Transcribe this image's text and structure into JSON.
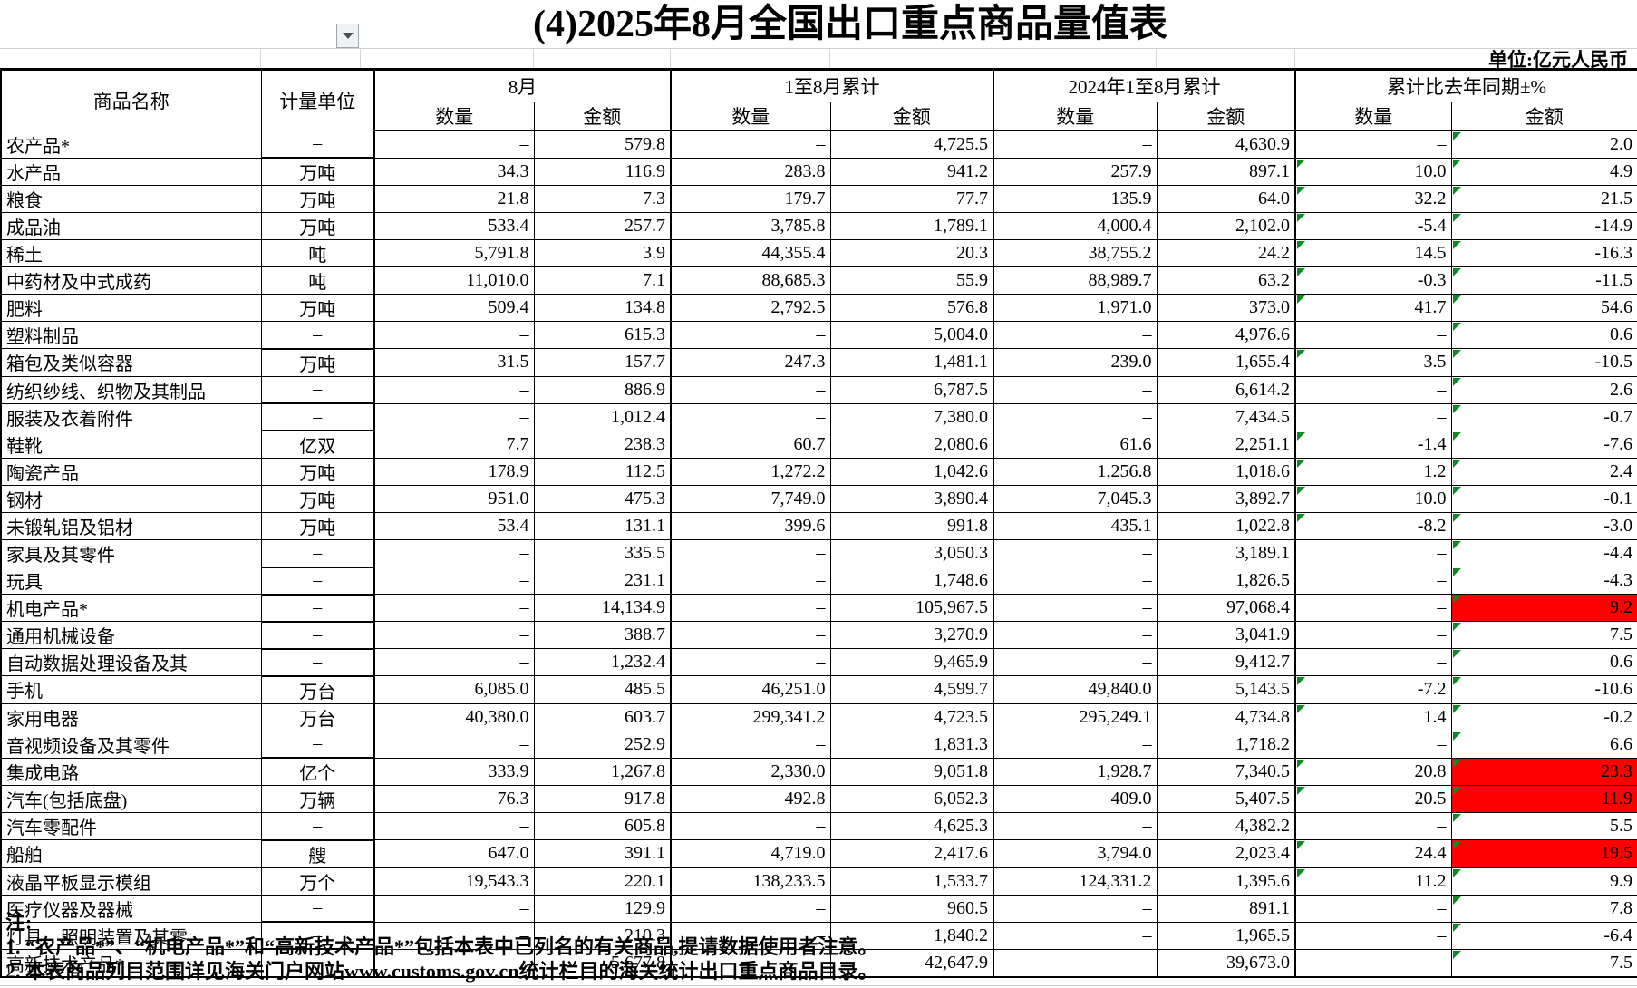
{
  "title": "(4)2025年8月全国出口重点商品量值表",
  "unit_note": "单位:亿元人民币",
  "dropdown": {
    "symbol": "▼"
  },
  "colors": {
    "highlight_red": "#fe0000",
    "error_triangle_green": "#0d8a26",
    "table_border": "#000000",
    "sheet_gridline": "#d0d0d0"
  },
  "table": {
    "dash": "–",
    "headers": {
      "name": "商品名称",
      "unit": "计量单位",
      "groups": [
        {
          "label": "8月"
        },
        {
          "label": "1至8月累计"
        },
        {
          "label": "2024年1至8月累计"
        },
        {
          "label": "累计比去年同期±%"
        }
      ],
      "qty": "数量",
      "val": "金额"
    },
    "rows": [
      {
        "name": "农产品*",
        "indent": false,
        "unit": "–",
        "q8": "–",
        "v8": "579.8",
        "q18": "–",
        "v18": "4,725.5",
        "q24": "–",
        "v24": "4,630.9",
        "pq": "–",
        "pv": "2.0",
        "red": false
      },
      {
        "name": "水产品",
        "indent": true,
        "unit": "万吨",
        "q8": "34.3",
        "v8": "116.9",
        "q18": "283.8",
        "v18": "941.2",
        "q24": "257.9",
        "v24": "897.1",
        "pq": "10.0",
        "pv": "4.9",
        "red": false
      },
      {
        "name": "粮食",
        "indent": true,
        "unit": "万吨",
        "q8": "21.8",
        "v8": "7.3",
        "q18": "179.7",
        "v18": "77.7",
        "q24": "135.9",
        "v24": "64.0",
        "pq": "32.2",
        "pv": "21.5",
        "red": false
      },
      {
        "name": "成品油",
        "indent": false,
        "unit": "万吨",
        "q8": "533.4",
        "v8": "257.7",
        "q18": "3,785.8",
        "v18": "1,789.1",
        "q24": "4,000.4",
        "v24": "2,102.0",
        "pq": "-5.4",
        "pv": "-14.9",
        "red": false
      },
      {
        "name": "稀土",
        "indent": false,
        "unit": "吨",
        "q8": "5,791.8",
        "v8": "3.9",
        "q18": "44,355.4",
        "v18": "20.3",
        "q24": "38,755.2",
        "v24": "24.2",
        "pq": "14.5",
        "pv": "-16.3",
        "red": false
      },
      {
        "name": "中药材及中式成药",
        "indent": false,
        "unit": "吨",
        "q8": "11,010.0",
        "v8": "7.1",
        "q18": "88,685.3",
        "v18": "55.9",
        "q24": "88,989.7",
        "v24": "63.2",
        "pq": "-0.3",
        "pv": "-11.5",
        "red": false
      },
      {
        "name": "肥料",
        "indent": false,
        "unit": "万吨",
        "q8": "509.4",
        "v8": "134.8",
        "q18": "2,792.5",
        "v18": "576.8",
        "q24": "1,971.0",
        "v24": "373.0",
        "pq": "41.7",
        "pv": "54.6",
        "red": false
      },
      {
        "name": "塑料制品",
        "indent": false,
        "unit": "–",
        "q8": "–",
        "v8": "615.3",
        "q18": "–",
        "v18": "5,004.0",
        "q24": "–",
        "v24": "4,976.6",
        "pq": "–",
        "pv": "0.6",
        "red": false
      },
      {
        "name": "箱包及类似容器",
        "indent": false,
        "unit": "万吨",
        "q8": "31.5",
        "v8": "157.7",
        "q18": "247.3",
        "v18": "1,481.1",
        "q24": "239.0",
        "v24": "1,655.4",
        "pq": "3.5",
        "pv": "-10.5",
        "red": false
      },
      {
        "name": "纺织纱线、织物及其制品",
        "indent": false,
        "unit": "–",
        "q8": "–",
        "v8": "886.9",
        "q18": "–",
        "v18": "6,787.5",
        "q24": "–",
        "v24": "6,614.2",
        "pq": "–",
        "pv": "2.6",
        "red": false
      },
      {
        "name": "服装及衣着附件",
        "indent": false,
        "unit": "–",
        "q8": "–",
        "v8": "1,012.4",
        "q18": "–",
        "v18": "7,380.0",
        "q24": "–",
        "v24": "7,434.5",
        "pq": "–",
        "pv": "-0.7",
        "red": false
      },
      {
        "name": "鞋靴",
        "indent": false,
        "unit": "亿双",
        "q8": "7.7",
        "v8": "238.3",
        "q18": "60.7",
        "v18": "2,080.6",
        "q24": "61.6",
        "v24": "2,251.1",
        "pq": "-1.4",
        "pv": "-7.6",
        "red": false
      },
      {
        "name": "陶瓷产品",
        "indent": false,
        "unit": "万吨",
        "q8": "178.9",
        "v8": "112.5",
        "q18": "1,272.2",
        "v18": "1,042.6",
        "q24": "1,256.8",
        "v24": "1,018.6",
        "pq": "1.2",
        "pv": "2.4",
        "red": false
      },
      {
        "name": "钢材",
        "indent": false,
        "unit": "万吨",
        "q8": "951.0",
        "v8": "475.3",
        "q18": "7,749.0",
        "v18": "3,890.4",
        "q24": "7,045.3",
        "v24": "3,892.7",
        "pq": "10.0",
        "pv": "-0.1",
        "red": false
      },
      {
        "name": "未锻轧铝及铝材",
        "indent": false,
        "unit": "万吨",
        "q8": "53.4",
        "v8": "131.1",
        "q18": "399.6",
        "v18": "991.8",
        "q24": "435.1",
        "v24": "1,022.8",
        "pq": "-8.2",
        "pv": "-3.0",
        "red": false
      },
      {
        "name": "家具及其零件",
        "indent": false,
        "unit": "–",
        "q8": "–",
        "v8": "335.5",
        "q18": "–",
        "v18": "3,050.3",
        "q24": "–",
        "v24": "3,189.1",
        "pq": "–",
        "pv": "-4.4",
        "red": false
      },
      {
        "name": "玩具",
        "indent": false,
        "unit": "–",
        "q8": "–",
        "v8": "231.1",
        "q18": "–",
        "v18": "1,748.6",
        "q24": "–",
        "v24": "1,826.5",
        "pq": "–",
        "pv": "-4.3",
        "red": false
      },
      {
        "name": "机电产品*",
        "indent": false,
        "unit": "–",
        "q8": "–",
        "v8": "14,134.9",
        "q18": "–",
        "v18": "105,967.5",
        "q24": "–",
        "v24": "97,068.4",
        "pq": "–",
        "pv": "9.2",
        "red": true
      },
      {
        "name": "通用机械设备",
        "indent": true,
        "unit": "–",
        "q8": "–",
        "v8": "388.7",
        "q18": "–",
        "v18": "3,270.9",
        "q24": "–",
        "v24": "3,041.9",
        "pq": "–",
        "pv": "7.5",
        "red": false
      },
      {
        "name": "自动数据处理设备及其",
        "indent": true,
        "unit": "–",
        "q8": "–",
        "v8": "1,232.4",
        "q18": "–",
        "v18": "9,465.9",
        "q24": "–",
        "v24": "9,412.7",
        "pq": "–",
        "pv": "0.6",
        "red": false
      },
      {
        "name": "手机",
        "indent": true,
        "unit": "万台",
        "q8": "6,085.0",
        "v8": "485.5",
        "q18": "46,251.0",
        "v18": "4,599.7",
        "q24": "49,840.0",
        "v24": "5,143.5",
        "pq": "-7.2",
        "pv": "-10.6",
        "red": false
      },
      {
        "name": "家用电器",
        "indent": true,
        "unit": "万台",
        "q8": "40,380.0",
        "v8": "603.7",
        "q18": "299,341.2",
        "v18": "4,723.5",
        "q24": "295,249.1",
        "v24": "4,734.8",
        "pq": "1.4",
        "pv": "-0.2",
        "red": false
      },
      {
        "name": "音视频设备及其零件",
        "indent": true,
        "unit": "–",
        "q8": "–",
        "v8": "252.9",
        "q18": "–",
        "v18": "1,831.3",
        "q24": "–",
        "v24": "1,718.2",
        "pq": "–",
        "pv": "6.6",
        "red": false
      },
      {
        "name": "集成电路",
        "indent": true,
        "unit": "亿个",
        "q8": "333.9",
        "v8": "1,267.8",
        "q18": "2,330.0",
        "v18": "9,051.8",
        "q24": "1,928.7",
        "v24": "7,340.5",
        "pq": "20.8",
        "pv": "23.3",
        "red": true
      },
      {
        "name": "汽车(包括底盘)",
        "indent": true,
        "unit": "万辆",
        "q8": "76.3",
        "v8": "917.8",
        "q18": "492.8",
        "v18": "6,052.3",
        "q24": "409.0",
        "v24": "5,407.5",
        "pq": "20.5",
        "pv": "11.9",
        "red": true
      },
      {
        "name": "汽车零配件",
        "indent": true,
        "unit": "–",
        "q8": "–",
        "v8": "605.8",
        "q18": "–",
        "v18": "4,625.3",
        "q24": "–",
        "v24": "4,382.2",
        "pq": "–",
        "pv": "5.5",
        "red": false
      },
      {
        "name": "船舶",
        "indent": true,
        "unit": "艘",
        "q8": "647.0",
        "v8": "391.1",
        "q18": "4,719.0",
        "v18": "2,417.6",
        "q24": "3,794.0",
        "v24": "2,023.4",
        "pq": "24.4",
        "pv": "19.5",
        "red": true
      },
      {
        "name": "液晶平板显示模组",
        "indent": true,
        "unit": "万个",
        "q8": "19,543.3",
        "v8": "220.1",
        "q18": "138,233.5",
        "v18": "1,533.7",
        "q24": "124,331.2",
        "v24": "1,395.6",
        "pq": "11.2",
        "pv": "9.9",
        "red": false
      },
      {
        "name": "医疗仪器及器械",
        "indent": true,
        "unit": "–",
        "q8": "–",
        "v8": "129.9",
        "q18": "–",
        "v18": "960.5",
        "q24": "–",
        "v24": "891.1",
        "pq": "–",
        "pv": "7.8",
        "red": false
      },
      {
        "name": "灯具、照明装置及其零",
        "indent": true,
        "unit": "–",
        "q8": "–",
        "v8": "210.3",
        "q18": "–",
        "v18": "1,840.2",
        "q24": "–",
        "v24": "1,965.5",
        "pq": "–",
        "pv": "-6.4",
        "red": false
      },
      {
        "name": "高新技术产品*",
        "indent": false,
        "unit": "–",
        "q8": "–",
        "v8": "5,677.8",
        "q18": "–",
        "v18": "42,647.9",
        "q24": "–",
        "v24": "39,673.0",
        "pq": "–",
        "pv": "7.5",
        "red": false
      }
    ]
  },
  "notes": {
    "label": "注:",
    "items": [
      "1. “农产品*”、“机电产品*”和“高新技术产品*”包括本表中已列名的有关商品,提请数据使用者注意。",
      "2. 本表商品列目范围详见海关门户网站www.customs.gov.cn统计栏目的海关统计出口重点商品目录。"
    ]
  }
}
